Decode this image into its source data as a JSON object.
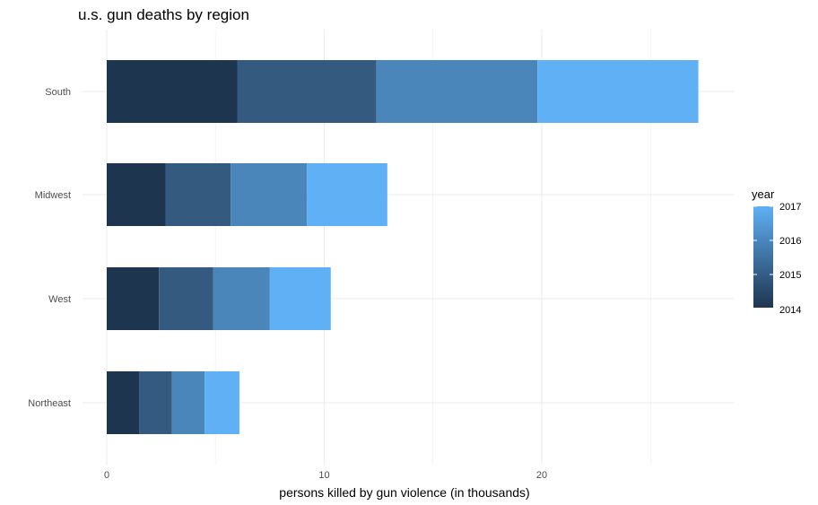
{
  "chart_data": {
    "type": "bar",
    "orientation": "horizontal",
    "stacked": true,
    "title": "u.s. gun deaths by region",
    "xlabel": "persons killed by gun violence (in thousands)",
    "ylabel": "",
    "categories": [
      "South",
      "Midwest",
      "West",
      "Northeast"
    ],
    "series": [
      {
        "name": "2014",
        "color": "#1e3550",
        "values": [
          6.0,
          2.7,
          2.4,
          1.5
        ]
      },
      {
        "name": "2015",
        "color": "#355a7f",
        "values": [
          6.4,
          3.0,
          2.5,
          1.5
        ]
      },
      {
        "name": "2016",
        "color": "#4a86ba",
        "values": [
          7.4,
          3.5,
          2.6,
          1.5
        ]
      },
      {
        "name": "2017",
        "color": "#5fb0f4",
        "values": [
          7.4,
          3.7,
          2.8,
          1.6
        ]
      }
    ],
    "x_ticks": [
      0,
      10,
      20
    ],
    "xlim": [
      0,
      28.7
    ],
    "grid": true,
    "legend": {
      "title": "year",
      "placement": "right",
      "type": "colorbar",
      "labels": [
        "2017",
        "2016",
        "2015",
        "2014"
      ],
      "colors": [
        "#1e3550",
        "#5fb0f4"
      ]
    }
  }
}
